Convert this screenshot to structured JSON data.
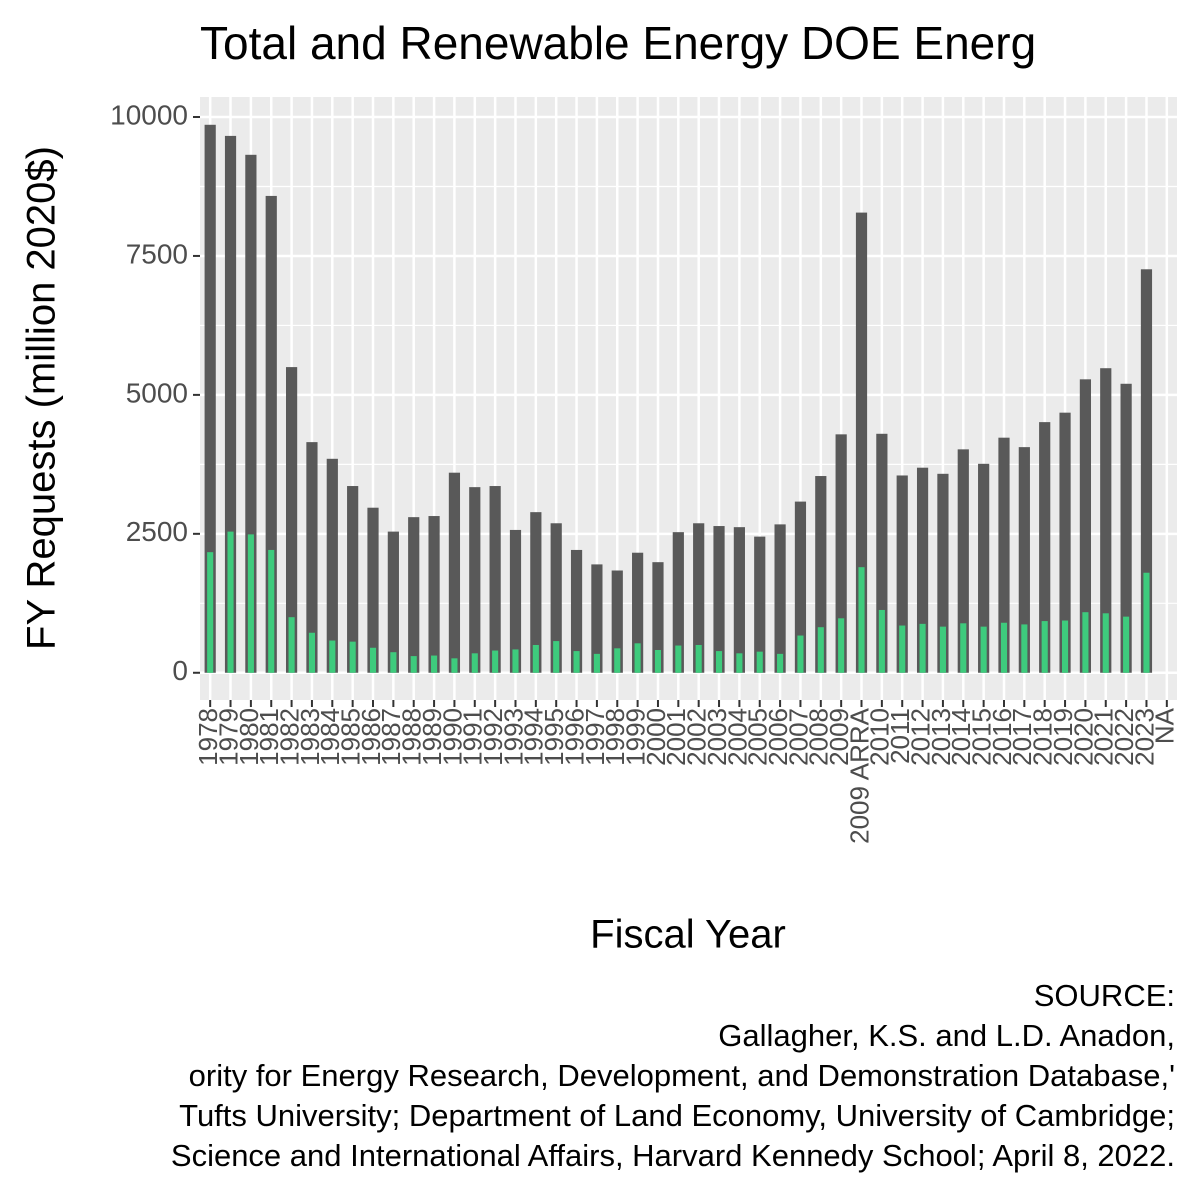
{
  "chart_data": {
    "type": "bar",
    "title": "Total and Renewable Energy DOE Energ",
    "x_label": "Fiscal Year",
    "y_label": "FY Requests (million 2020$)",
    "categories": [
      "1978",
      "1979",
      "1980",
      "1981",
      "1982",
      "1983",
      "1984",
      "1985",
      "1986",
      "1987",
      "1988",
      "1989",
      "1990",
      "1991",
      "1992",
      "1993",
      "1994",
      "1995",
      "1996",
      "1997",
      "1998",
      "1999",
      "2000",
      "2001",
      "2002",
      "2003",
      "2004",
      "2005",
      "2006",
      "2007",
      "2008",
      "2009",
      "2009 ARRA",
      "2010",
      "2011",
      "2012",
      "2013",
      "2014",
      "2015",
      "2016",
      "2017",
      "2018",
      "2019",
      "2020",
      "2021",
      "2022",
      "2023",
      "NA"
    ],
    "series": [
      {
        "color": "#595959",
        "values": [
          9860,
          9660,
          9320,
          8580,
          5500,
          4150,
          3850,
          3360,
          2970,
          2540,
          2800,
          2820,
          3600,
          3340,
          3360,
          2570,
          2890,
          2690,
          2210,
          1950,
          1840,
          2160,
          1990,
          2530,
          2690,
          2640,
          2620,
          2450,
          2670,
          3080,
          3540,
          4290,
          8280,
          4300,
          3550,
          3690,
          3580,
          4020,
          3760,
          4230,
          4060,
          4510,
          4680,
          5280,
          5480,
          5200,
          7260,
          null
        ]
      },
      {
        "color": "#3ecb7d",
        "values": [
          2170,
          2540,
          2490,
          2210,
          1000,
          720,
          580,
          560,
          450,
          370,
          300,
          310,
          260,
          350,
          400,
          420,
          500,
          570,
          390,
          340,
          440,
          530,
          410,
          490,
          500,
          390,
          350,
          380,
          340,
          670,
          820,
          980,
          1900,
          1130,
          850,
          880,
          830,
          890,
          830,
          900,
          870,
          930,
          940,
          1090,
          1070,
          1010,
          1800,
          null
        ]
      }
    ],
    "ylim": [
      -490,
      10360
    ],
    "yticks": [
      0,
      2500,
      5000,
      7500,
      10000
    ],
    "grid": true,
    "caption": [
      "SOURCE:",
      "Gallagher, K.S. and L.D. Anadon,",
      "ority for Energy Research, Development, and Demonstration Database,'",
      "Tufts University; Department of Land Economy, University of Cambridge;",
      "Science and International Affairs, Harvard Kennedy School; April 8, 2022."
    ]
  }
}
